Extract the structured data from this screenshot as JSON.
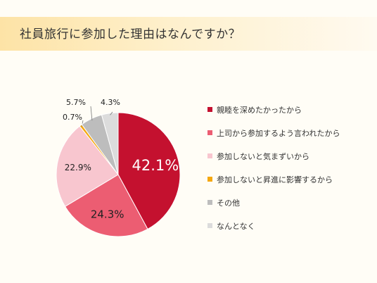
{
  "header": {
    "title": "社員旅行に参加した理由はなんですか？"
  },
  "chart_data": {
    "type": "pie",
    "title": "",
    "categories": [
      "親睦を深めたかったから",
      "上司から参加するよう言われたから",
      "参加しないと気まずいから",
      "参加しないと昇進に影響するから",
      "その他",
      "なんとなく"
    ],
    "values": [
      42.1,
      24.3,
      22.9,
      0.7,
      5.7,
      4.3
    ],
    "data_labels": [
      "42.1%",
      "24.3%",
      "22.9%",
      "0.7%",
      "5.7%",
      "4.3%"
    ],
    "colors": [
      "#c4112f",
      "#ec5d72",
      "#f8c6cf",
      "#f5a80f",
      "#bdbdbd",
      "#dcdcdc"
    ],
    "legend_position": "right"
  }
}
